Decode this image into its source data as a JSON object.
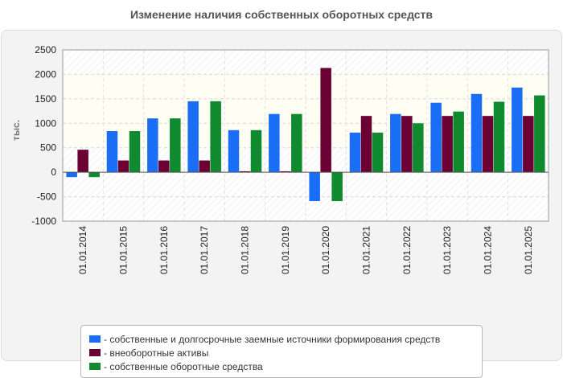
{
  "chart_data": {
    "type": "bar",
    "title": "Изменение наличия собственных оборотных средств",
    "ylabel": "тыс.",
    "xlabel": "",
    "ylim": [
      -1000,
      2500
    ],
    "yticks": [
      2500,
      2000,
      1500,
      1000,
      500,
      0,
      -500,
      -1000
    ],
    "grid": true,
    "legend_position": "bottom",
    "categories": [
      "01.01.2014",
      "01.01.2015",
      "01.01.2016",
      "01.01.2017",
      "01.01.2018",
      "01.01.2019",
      "01.01.2020",
      "01.01.2021",
      "01.01.2022",
      "01.01.2023",
      "01.01.2024",
      "01.01.2025"
    ],
    "series": [
      {
        "name": "- собственные и долгосрочные заемные источники формирования средств",
        "color": "#1a6ef5",
        "values": [
          -100,
          840,
          1100,
          1450,
          860,
          1190,
          -590,
          810,
          1190,
          1420,
          1600,
          1730
        ]
      },
      {
        "name": "- внеоборотные активы",
        "color": "#6b0033",
        "values": [
          460,
          240,
          240,
          240,
          20,
          20,
          2130,
          1150,
          1150,
          1150,
          1150,
          1150
        ]
      },
      {
        "name": "- собственные оборотные средства",
        "color": "#0f8a2e",
        "values": [
          -100,
          840,
          1100,
          1450,
          860,
          1190,
          -590,
          810,
          1000,
          1240,
          1440,
          1570
        ]
      }
    ]
  }
}
